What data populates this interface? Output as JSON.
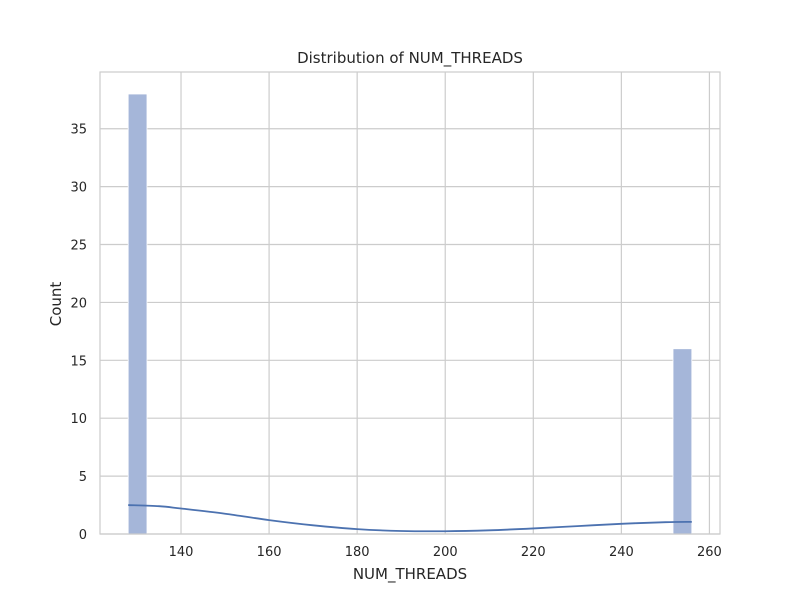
{
  "chart_data": {
    "type": "bar",
    "title": "Distribution of NUM_THREADS",
    "xlabel": "NUM_THREADS",
    "ylabel": "Count",
    "xlim": [
      121.6,
      262.4
    ],
    "ylim": [
      0,
      39.9
    ],
    "xticks": [
      140,
      160,
      180,
      200,
      220,
      240,
      260
    ],
    "yticks": [
      0,
      5,
      10,
      15,
      20,
      25,
      30,
      35
    ],
    "grid": true,
    "colors": {
      "bar_fill": "#a5b6d9",
      "bar_stroke": "#ffffff",
      "kde_line": "#4c72b0",
      "grid": "#cccccc",
      "spine": "#cccccc"
    },
    "bins": [
      {
        "x0": 128,
        "x1": 132.27,
        "count": 38
      },
      {
        "x0": 251.73,
        "x1": 256,
        "count": 16
      }
    ],
    "kde": {
      "x": [
        128,
        135,
        140,
        150,
        160,
        170,
        180,
        190,
        200,
        210,
        220,
        230,
        240,
        250,
        256
      ],
      "y": [
        2.5,
        2.4,
        2.2,
        1.75,
        1.2,
        0.75,
        0.42,
        0.26,
        0.24,
        0.32,
        0.48,
        0.68,
        0.88,
        1.02,
        1.05
      ]
    }
  }
}
